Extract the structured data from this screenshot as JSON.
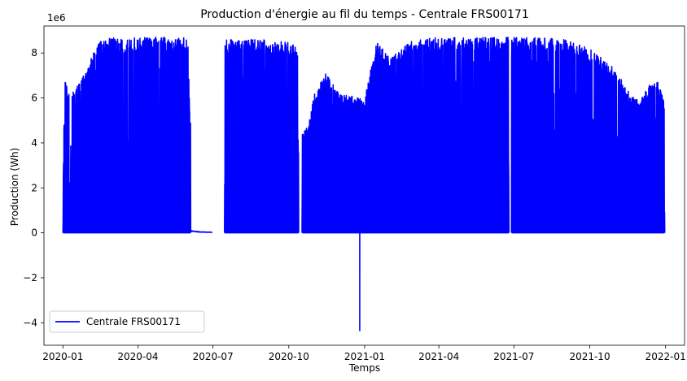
{
  "chart_data": {
    "type": "line",
    "title": "Production d'énergie au fil du temps - Centrale FRS00171",
    "xlabel": "Temps",
    "ylabel": "Production (Wh)",
    "y_multiplier": "1e6",
    "xlim": [
      "2019-12-09",
      "2022-01-24"
    ],
    "ylim": [
      -5.0,
      9.2
    ],
    "x_ticks": [
      "2020-01",
      "2020-04",
      "2020-07",
      "2020-10",
      "2021-01",
      "2021-04",
      "2021-07",
      "2021-10",
      "2022-01"
    ],
    "y_ticks": [
      -4,
      -2,
      0,
      2,
      4,
      6,
      8
    ],
    "grid": false,
    "legend_position": "lower-left",
    "line_color": "#0000ff",
    "series": [
      {
        "name": "Centrale FRS00171",
        "segments": [
          {
            "x_start": "2020-01-01",
            "x_end": "2020-06-04",
            "daily_peak_envelope": [
              {
                "x": "2020-01-01",
                "y": 1.1
              },
              {
                "x": "2020-01-03",
                "y": 6.8
              },
              {
                "x": "2020-01-10",
                "y": 6.1
              },
              {
                "x": "2020-01-20",
                "y": 6.6
              },
              {
                "x": "2020-02-01",
                "y": 7.4
              },
              {
                "x": "2020-02-10",
                "y": 8.4
              },
              {
                "x": "2020-02-25",
                "y": 8.7
              },
              {
                "x": "2020-03-15",
                "y": 8.6
              },
              {
                "x": "2020-04-01",
                "y": 8.7
              },
              {
                "x": "2020-05-01",
                "y": 8.7
              },
              {
                "x": "2020-06-01",
                "y": 8.7
              },
              {
                "x": "2020-06-03",
                "y": 4.9
              }
            ],
            "min": 0
          },
          {
            "x_start": "2020-06-04",
            "x_end": "2020-06-30",
            "daily_peak_envelope": [
              {
                "x": "2020-06-05",
                "y": 0.1
              },
              {
                "x": "2020-06-15",
                "y": 0.05
              },
              {
                "x": "2020-06-30",
                "y": 0.03
              }
            ],
            "min": 0
          },
          {
            "x_start": "2020-07-15",
            "x_end": "2020-10-13",
            "daily_peak_envelope": [
              {
                "x": "2020-07-15",
                "y": 8.6
              },
              {
                "x": "2020-08-01",
                "y": 8.6
              },
              {
                "x": "2020-09-01",
                "y": 8.6
              },
              {
                "x": "2020-10-01",
                "y": 8.5
              },
              {
                "x": "2020-10-12",
                "y": 8.2
              }
            ],
            "min": 0
          },
          {
            "x_start": "2020-10-17",
            "x_end": "2021-06-25",
            "daily_peak_envelope": [
              {
                "x": "2020-10-17",
                "y": 4.5
              },
              {
                "x": "2020-10-25",
                "y": 4.8
              },
              {
                "x": "2020-11-01",
                "y": 6.2
              },
              {
                "x": "2020-11-15",
                "y": 7.1
              },
              {
                "x": "2020-12-01",
                "y": 6.2
              },
              {
                "x": "2020-12-15",
                "y": 6.1
              },
              {
                "x": "2021-01-01",
                "y": 5.9
              },
              {
                "x": "2021-01-15",
                "y": 8.5
              },
              {
                "x": "2021-02-01",
                "y": 7.8
              },
              {
                "x": "2021-03-01",
                "y": 8.6
              },
              {
                "x": "2021-04-01",
                "y": 8.7
              },
              {
                "x": "2021-05-01",
                "y": 8.7
              },
              {
                "x": "2021-06-01",
                "y": 8.7
              },
              {
                "x": "2021-06-25",
                "y": 8.7
              }
            ],
            "min": 0,
            "notable_points": [
              {
                "x": "2020-12-26",
                "y": -4.35
              }
            ]
          },
          {
            "x_start": "2021-06-28",
            "x_end": "2021-12-31",
            "daily_peak_envelope": [
              {
                "x": "2021-06-28",
                "y": 8.7
              },
              {
                "x": "2021-08-01",
                "y": 8.7
              },
              {
                "x": "2021-09-01",
                "y": 8.6
              },
              {
                "x": "2021-10-01",
                "y": 8.2
              },
              {
                "x": "2021-11-01",
                "y": 7.3
              },
              {
                "x": "2021-11-20",
                "y": 6.1
              },
              {
                "x": "2021-12-01",
                "y": 5.9
              },
              {
                "x": "2021-12-20",
                "y": 7.0
              },
              {
                "x": "2021-12-31",
                "y": 5.8
              }
            ],
            "min": 0
          }
        ]
      }
    ]
  }
}
